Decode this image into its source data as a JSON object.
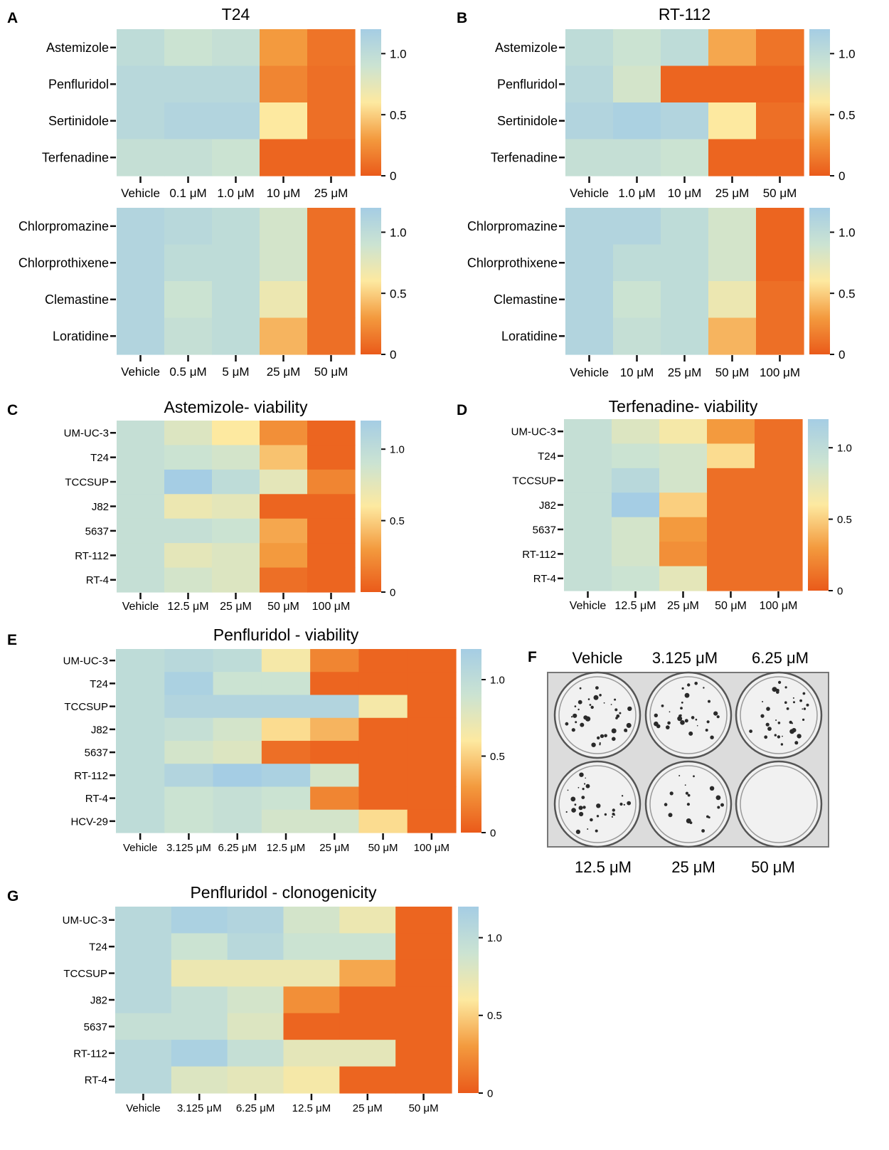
{
  "colorbar": {
    "stops": [
      "#ea5a1a",
      "#f39a3e",
      "#fde9a0",
      "#cbe3d2",
      "#a5cde4"
    ],
    "ticks": [
      "0",
      "0.5",
      "1.0"
    ],
    "max": 1.2
  },
  "photo": {
    "panel_label": "F",
    "top_labels": [
      "Vehicle",
      "3.125 μM",
      "6.25 μM"
    ],
    "bottom_labels": [
      "12.5 μM",
      "25 μM",
      "50 μM"
    ]
  },
  "chart_data": [
    {
      "panel": "A",
      "type": "heatmap",
      "title": "T24",
      "rows": [
        "Astemizole",
        "Penfluridol",
        "Sertinidole",
        "Terfenadine"
      ],
      "columns": [
        "Vehicle",
        "0.1 μM",
        "1.0 μM",
        "10 μM",
        "25 μM"
      ],
      "values": [
        [
          1.0,
          0.9,
          0.95,
          0.3,
          0.12
        ],
        [
          1.05,
          1.05,
          1.05,
          0.2,
          0.1
        ],
        [
          1.05,
          1.1,
          1.1,
          0.6,
          0.1
        ],
        [
          0.95,
          0.95,
          0.9,
          0.05,
          0.05
        ]
      ],
      "colorbar_ticks": [
        "0",
        "0.5",
        "1.0"
      ]
    },
    {
      "panel": "A2",
      "type": "heatmap",
      "title": "",
      "rows": [
        "Chlorpromazine",
        "Chlorprothixene",
        "Clemastine",
        "Loratidine"
      ],
      "columns": [
        "Vehicle",
        "0.5 μM",
        "5 μM",
        "25 μM",
        "50 μM"
      ],
      "values": [
        [
          1.1,
          1.05,
          1.0,
          0.85,
          0.1
        ],
        [
          1.1,
          1.0,
          1.0,
          0.85,
          0.1
        ],
        [
          1.1,
          0.9,
          1.0,
          0.7,
          0.1
        ],
        [
          1.1,
          0.95,
          1.0,
          0.4,
          0.1
        ]
      ],
      "colorbar_ticks": [
        "0",
        "0.5",
        "1.0"
      ]
    },
    {
      "panel": "B",
      "type": "heatmap",
      "title": "RT-112",
      "rows": [
        "Astemizole",
        "Penfluridol",
        "Sertinidole",
        "Terfenadine"
      ],
      "columns": [
        "Vehicle",
        "1.0 μM",
        "10 μM",
        "25 μM",
        "50 μM"
      ],
      "values": [
        [
          1.0,
          0.9,
          1.0,
          0.35,
          0.12
        ],
        [
          1.05,
          0.85,
          0.05,
          0.05,
          0.05
        ],
        [
          1.1,
          1.15,
          1.1,
          0.6,
          0.1
        ],
        [
          0.95,
          0.95,
          0.9,
          0.05,
          0.05
        ]
      ],
      "colorbar_ticks": [
        "0",
        "0.5",
        "1.0"
      ]
    },
    {
      "panel": "B2",
      "type": "heatmap",
      "title": "",
      "rows": [
        "Chlorpromazine",
        "Chlorprothixene",
        "Clemastine",
        "Loratidine"
      ],
      "columns": [
        "Vehicle",
        "10 μM",
        "25 μM",
        "50 μM",
        "100 μM"
      ],
      "values": [
        [
          1.1,
          1.1,
          1.0,
          0.85,
          0.05
        ],
        [
          1.1,
          1.0,
          1.0,
          0.85,
          0.05
        ],
        [
          1.1,
          0.9,
          1.0,
          0.7,
          0.1
        ],
        [
          1.1,
          0.95,
          1.0,
          0.4,
          0.1
        ]
      ],
      "colorbar_ticks": [
        "0",
        "0.5",
        "1.0"
      ]
    },
    {
      "panel": "C",
      "type": "heatmap",
      "title": "Astemizole- viability",
      "rows": [
        "UM-UC-3",
        "T24",
        "TCCSUP",
        "J82",
        "5637",
        "RT-112",
        "RT-4"
      ],
      "columns": [
        "Vehicle",
        "12.5 μM",
        "25 μM",
        "50 μM",
        "100 μM"
      ],
      "values": [
        [
          0.95,
          0.8,
          0.6,
          0.25,
          0.05
        ],
        [
          0.95,
          0.9,
          0.85,
          0.45,
          0.05
        ],
        [
          0.95,
          1.2,
          1.0,
          0.75,
          0.2
        ],
        [
          0.95,
          0.7,
          0.75,
          0.05,
          0.05
        ],
        [
          0.95,
          0.95,
          0.9,
          0.35,
          0.05
        ],
        [
          0.95,
          0.75,
          0.8,
          0.3,
          0.05
        ],
        [
          0.95,
          0.85,
          0.8,
          0.1,
          0.05
        ]
      ],
      "colorbar_ticks": [
        "0",
        "0.5",
        "1.0"
      ]
    },
    {
      "panel": "D",
      "type": "heatmap",
      "title": "Terfenadine- viability",
      "rows": [
        "UM-UC-3",
        "T24",
        "TCCSUP",
        "J82",
        "5637",
        "RT-112",
        "RT-4"
      ],
      "columns": [
        "Vehicle",
        "12.5 μM",
        "25 μM",
        "50 μM",
        "100 μM"
      ],
      "values": [
        [
          0.95,
          0.8,
          0.65,
          0.3,
          0.1
        ],
        [
          0.95,
          0.9,
          0.85,
          0.55,
          0.1
        ],
        [
          0.95,
          1.05,
          0.85,
          0.1,
          0.1
        ],
        [
          0.95,
          1.2,
          0.5,
          0.1,
          0.1
        ],
        [
          0.95,
          0.85,
          0.3,
          0.1,
          0.1
        ],
        [
          0.95,
          0.85,
          0.25,
          0.1,
          0.1
        ],
        [
          0.95,
          0.9,
          0.75,
          0.1,
          0.1
        ]
      ],
      "colorbar_ticks": [
        "0",
        "0.5",
        "1.0"
      ]
    },
    {
      "panel": "E",
      "type": "heatmap",
      "title": "Penfluridol - viability",
      "rows": [
        "UM-UC-3",
        "T24",
        "TCCSUP",
        "J82",
        "5637",
        "RT-112",
        "RT-4",
        "HCV-29"
      ],
      "columns": [
        "Vehicle",
        "3.125 μM",
        "6.25 μM",
        "12.5 μM",
        "25 μM",
        "50 μM",
        "100 μM"
      ],
      "values": [
        [
          1.0,
          1.05,
          1.0,
          0.65,
          0.2,
          0.05,
          0.05
        ],
        [
          1.0,
          1.15,
          0.9,
          0.9,
          0.05,
          0.05,
          0.05
        ],
        [
          1.0,
          1.1,
          1.1,
          1.1,
          1.1,
          0.65,
          0.05
        ],
        [
          1.0,
          0.95,
          0.85,
          0.55,
          0.4,
          0.05,
          0.05
        ],
        [
          1.0,
          0.85,
          0.8,
          0.1,
          0.05,
          0.05,
          0.05
        ],
        [
          1.0,
          1.1,
          1.2,
          1.15,
          0.85,
          0.05,
          0.05
        ],
        [
          1.0,
          0.9,
          0.95,
          0.9,
          0.2,
          0.05,
          0.05
        ],
        [
          1.0,
          0.9,
          0.95,
          0.85,
          0.85,
          0.55,
          0.05
        ]
      ],
      "colorbar_ticks": [
        "0",
        "0.5",
        "1.0"
      ]
    },
    {
      "panel": "G",
      "type": "heatmap",
      "title": "Penfluridol - clonogenicity",
      "rows": [
        "UM-UC-3",
        "T24",
        "TCCSUP",
        "J82",
        "5637",
        "RT-112",
        "RT-4"
      ],
      "columns": [
        "Vehicle",
        "3.125 μM",
        "6.25 μM",
        "12.5 μM",
        "25 μM",
        "50 μM"
      ],
      "values": [
        [
          1.05,
          1.15,
          1.1,
          0.85,
          0.7,
          0.05
        ],
        [
          1.05,
          0.9,
          1.05,
          0.9,
          0.9,
          0.05
        ],
        [
          1.05,
          0.7,
          0.7,
          0.7,
          0.35,
          0.05
        ],
        [
          1.05,
          0.95,
          0.85,
          0.25,
          0.05,
          0.05
        ],
        [
          0.95,
          0.95,
          0.8,
          0.05,
          0.05,
          0.05
        ],
        [
          1.05,
          1.15,
          0.95,
          0.75,
          0.75,
          0.05
        ],
        [
          1.05,
          0.8,
          0.75,
          0.65,
          0.05,
          0.05
        ]
      ],
      "colorbar_ticks": [
        "0",
        "0.5",
        "1.0"
      ]
    }
  ]
}
